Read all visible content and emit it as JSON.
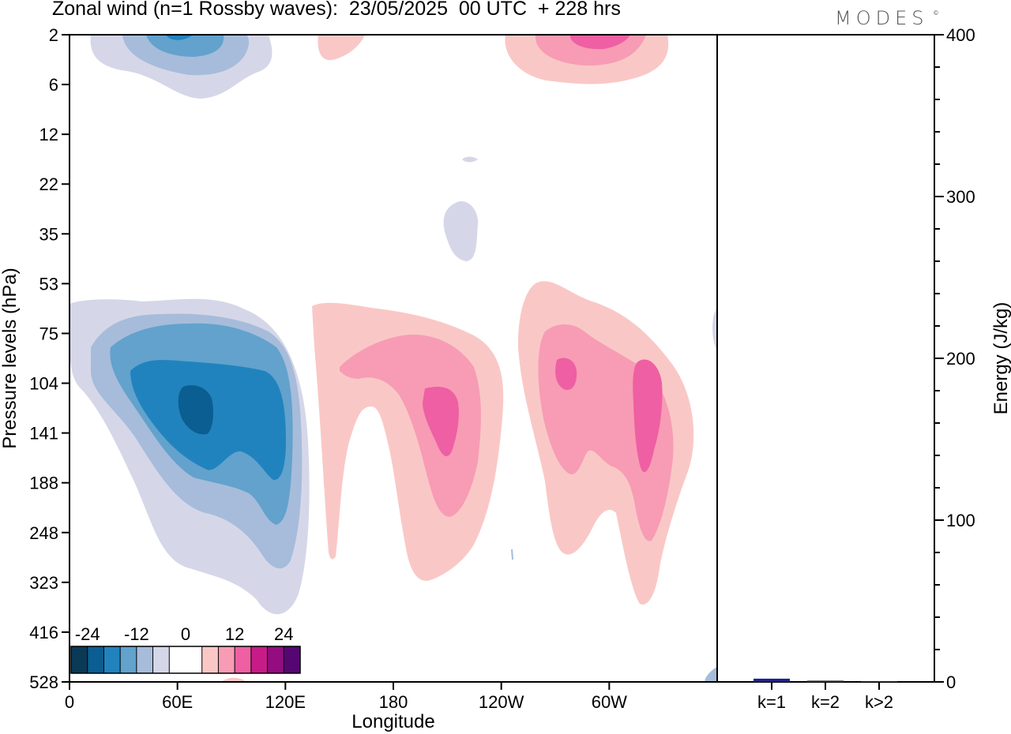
{
  "title": "Zonal wind (n=1 Rossby waves):  23/05/2025  00 UTC  + 228 hrs",
  "logo": {
    "text": "MODES",
    "mark": "©"
  },
  "chart_data": [
    {
      "type": "heatmap",
      "title": "Zonal wind (n=1 Rossby waves):  23/05/2025  00 UTC  + 228 hrs",
      "xlabel": "Longitude",
      "ylabel": "Pressure levels (hPa)",
      "x_ticks": [
        "0",
        "60E",
        "120E",
        "180",
        "120W",
        "60W"
      ],
      "x_tick_degrees": [
        0,
        60,
        120,
        180,
        240,
        300
      ],
      "x_range_degrees": [
        0,
        360
      ],
      "y_ticks": [
        "2",
        "6",
        "12",
        "22",
        "35",
        "53",
        "75",
        "104",
        "141",
        "188",
        "248",
        "323",
        "416",
        "528"
      ],
      "y_scale": "categorical model levels, top 2 hPa, bottom 528 hPa",
      "colorbar": {
        "labels": [
          "-24",
          "-12",
          "0",
          "12",
          "24"
        ],
        "colors": [
          "#0b3a57",
          "#0a5e92",
          "#2183bd",
          "#62a2cd",
          "#a6bcda",
          "#d5d7e8",
          "#ffffff",
          "#ffffff",
          "#f9c8c6",
          "#f79cb4",
          "#ef5fa3",
          "#c71c88",
          "#930c80",
          "#560673"
        ]
      },
      "series": [
        {
          "name": "easterly (negative) maximum",
          "lon": 63,
          "level": "~120 hPa",
          "value": -20
        },
        {
          "name": "westerly (positive) maximum",
          "lon": 205,
          "level": "~120 hPa",
          "value": 14
        },
        {
          "name": "westerly (positive) maximum",
          "lon": 322,
          "level": "~120 hPa",
          "value": 14
        },
        {
          "name": "upper easterly",
          "lon": 60,
          "level": "2 hPa",
          "value": -16
        },
        {
          "name": "upper westerly",
          "lon": 280,
          "level": "2 hPa",
          "value": 14
        }
      ]
    },
    {
      "type": "bar",
      "ylabel": "Energy (J/kg)",
      "categories": [
        "k=1",
        "k=2",
        "k>2"
      ],
      "values": [
        2,
        0.8,
        0.5
      ],
      "ylim": [
        0,
        400
      ],
      "y_ticks": [
        "0",
        "100",
        "200",
        "300",
        "400"
      ],
      "colors": [
        "#1f1f8f",
        "#333333",
        "#333333"
      ]
    }
  ]
}
